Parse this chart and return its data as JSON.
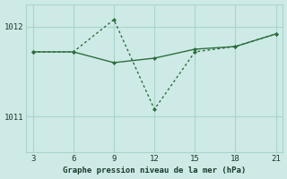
{
  "background_color": "#ceeae6",
  "grid_color": "#a8d5cc",
  "line_color": "#2d6e3e",
  "x_ticks": [
    3,
    6,
    9,
    12,
    15,
    18,
    21
  ],
  "xlim": [
    2.5,
    21.5
  ],
  "ylim": [
    1010.6,
    1012.25
  ],
  "yticks": [
    1011,
    1012
  ],
  "xlabel": "Graphe pression niveau de la mer (hPa)",
  "line1_x": [
    3,
    6,
    9,
    12,
    15,
    18,
    21
  ],
  "line1_y": [
    1011.72,
    1011.72,
    1011.6,
    1011.65,
    1011.75,
    1011.78,
    1011.92
  ],
  "line2_x": [
    3,
    6,
    9,
    12,
    15,
    18,
    21
  ],
  "line2_y": [
    1011.72,
    1011.72,
    1012.08,
    1011.08,
    1011.72,
    1011.78,
    1011.92
  ]
}
